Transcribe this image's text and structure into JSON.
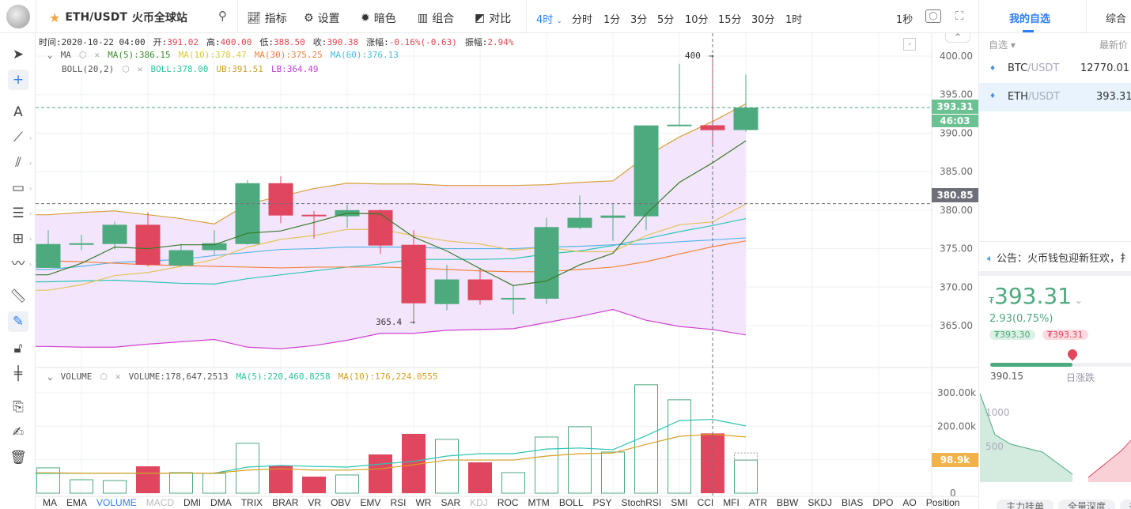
{
  "header": {
    "symbol": "ETH/USDT",
    "exchange": "火币全球站",
    "tools": [
      "指标",
      "设置",
      "暗色",
      "组合",
      "对比"
    ],
    "timeframes": [
      "4时",
      "分时",
      "1分",
      "3分",
      "5分",
      "10分",
      "15分",
      "30分",
      "1时"
    ],
    "active_timeframe": "4时",
    "refresh": "1秒"
  },
  "info": {
    "time_label": "时间:",
    "time": "2020-10-22 04:00",
    "open_label": "开:",
    "open": "391.02",
    "high_label": "高:",
    "high": "400.00",
    "low_label": "低:",
    "low": "388.50",
    "close_label": "收:",
    "close": "390.38",
    "chg_label": "涨幅:",
    "chg": "-0.16%(-0.63)",
    "amp_label": "振幅:",
    "amp": "2.94%"
  },
  "ma_legend": {
    "name": "MA",
    "ma5": "MA(5):386.15",
    "ma10": "MA(10):378.47",
    "ma30": "MA(30):375.25",
    "ma60": "MA(60):376.13"
  },
  "boll_legend": {
    "name": "BOLL(20,2)",
    "boll": "BOLL:378.00",
    "ub": "UB:391.51",
    "lb": "LB:364.49"
  },
  "vol_legend": {
    "name": "VOLUME",
    "vol": "VOLUME:178,647.2513",
    "ma5": "MA(5):220,460.8258",
    "ma10": "MA(10):176,224.0555"
  },
  "annotations": {
    "high": "400",
    "low": "365.4"
  },
  "price_tags": {
    "last": "393.31",
    "countdown": "46:03",
    "crosshair": "380.85",
    "volume": "98.9k"
  },
  "colors": {
    "up": "#4daa7e",
    "down": "#e0475f",
    "ma5": "#3a7a2a",
    "ma10": "#e3c35a",
    "ma30": "#f2843c",
    "ma60": "#5ab4e6",
    "boll": "#2ec4b6",
    "ub": "#d8a03a",
    "lb": "#d040d0",
    "vol_ma5": "#2ec4b6",
    "vol_ma10": "#d8a020",
    "accent": "#2f7cf6"
  },
  "indicator_tabs": [
    "MA",
    "EMA",
    "VOLUME",
    "MACD",
    "DMI",
    "DMA",
    "TRIX",
    "BRAR",
    "VR",
    "OBV",
    "EMV",
    "RSI",
    "WR",
    "SAR",
    "KDJ",
    "ROC",
    "MTM",
    "BOLL",
    "PSY",
    "StochRSI",
    "SMI",
    "CCI",
    "MFI",
    "ATR",
    "BBW",
    "SKDJ",
    "BIAS",
    "DPO",
    "AO",
    "Position"
  ],
  "active_indicator_tabs": [
    "MA",
    "VOLUME"
  ],
  "disabled_indicator_tabs": [
    "MACD",
    "KDJ"
  ],
  "chart_data": {
    "type": "candlestick",
    "price_ticks": [
      "400.00",
      "395.00",
      "390.00",
      "385.00",
      "380.00",
      "375.00",
      "370.00",
      "365.00"
    ],
    "ylim": [
      365,
      400
    ],
    "candles": [
      [
        372.5,
        377.4,
        372.5,
        375.6
      ],
      [
        375.5,
        376.8,
        374.8,
        375.7
      ],
      [
        375.6,
        378.5,
        374.9,
        378.1
      ],
      [
        378.1,
        379.7,
        372.7,
        372.9
      ],
      [
        372.8,
        375.6,
        372.7,
        374.8
      ],
      [
        374.8,
        377.4,
        374.2,
        375.7
      ],
      [
        375.6,
        383.9,
        375.5,
        383.5
      ],
      [
        383.5,
        384.4,
        378.3,
        379.3
      ],
      [
        379.4,
        379.9,
        376.3,
        379.2
      ],
      [
        379.2,
        380.7,
        377.7,
        380.0
      ],
      [
        380.0,
        380.1,
        374.3,
        375.4
      ],
      [
        375.5,
        377.4,
        365.4,
        367.9
      ],
      [
        367.8,
        372.9,
        367.0,
        371.0
      ],
      [
        371.0,
        372.5,
        367.7,
        368.3
      ],
      [
        368.4,
        370.2,
        366.5,
        368.6
      ],
      [
        368.5,
        379.0,
        367.8,
        377.8
      ],
      [
        377.7,
        381.9,
        377.5,
        379.0
      ],
      [
        379.0,
        380.8,
        376.0,
        379.3
      ],
      [
        379.2,
        391.0,
        377.4,
        391.0
      ],
      [
        391.0,
        399.0,
        390.9,
        391.1
      ],
      [
        391.02,
        400.0,
        388.5,
        390.38
      ],
      [
        390.4,
        397.6,
        390.2,
        393.31
      ]
    ],
    "ma5": [
      371.6,
      373.1,
      375.2,
      375.0,
      375.5,
      375.5,
      377.0,
      377.3,
      378.4,
      379.6,
      379.5,
      376.5,
      374.7,
      372.4,
      370.2,
      370.8,
      372.9,
      374.4,
      379.5,
      383.6,
      386.15,
      389.0
    ],
    "ma10": [
      369.6,
      370.3,
      371.5,
      371.9,
      372.7,
      373.6,
      375.2,
      376.2,
      376.7,
      377.5,
      377.5,
      376.7,
      376.0,
      375.6,
      374.8,
      375.2,
      374.6,
      374.6,
      376.7,
      378.1,
      378.47,
      380.8
    ],
    "ma30": [
      373.4,
      373.3,
      373.1,
      372.9,
      372.8,
      372.7,
      372.6,
      372.5,
      372.6,
      372.6,
      372.6,
      372.5,
      372.3,
      372.1,
      372.0,
      372.0,
      372.3,
      372.6,
      373.3,
      374.3,
      375.25,
      376.0
    ],
    "ma60": [
      372.3,
      372.7,
      373.2,
      373.4,
      373.6,
      374.1,
      374.5,
      374.9,
      375.0,
      375.2,
      375.2,
      375.2,
      375.0,
      375.0,
      375.0,
      375.2,
      375.3,
      375.5,
      375.6,
      375.9,
      376.13,
      376.4
    ],
    "boll": [
      370.7,
      370.8,
      370.9,
      370.7,
      370.5,
      370.4,
      371.1,
      371.6,
      372.1,
      372.6,
      373.0,
      373.6,
      373.6,
      373.6,
      373.7,
      374.3,
      374.7,
      375.4,
      376.3,
      377.2,
      378.0,
      378.9
    ],
    "ub": [
      379.4,
      379.7,
      379.9,
      379.4,
      378.9,
      378.2,
      380.8,
      381.8,
      382.8,
      383.5,
      383.4,
      383.4,
      383.2,
      383.2,
      383.2,
      383.3,
      383.6,
      383.8,
      387.0,
      389.5,
      391.51,
      393.8
    ],
    "lb": [
      362.3,
      362.2,
      362.2,
      362.6,
      362.9,
      363.2,
      362.2,
      362.0,
      362.4,
      363.1,
      364.0,
      364.0,
      364.4,
      364.5,
      364.6,
      365.4,
      366.2,
      367.1,
      365.7,
      364.9,
      364.49,
      363.8
    ],
    "volume_ticks": [
      "300.00k",
      "200.00k",
      "0"
    ],
    "volume_k": [
      75.7,
      40.2,
      37.8,
      80.4,
      61.5,
      59.1,
      148.9,
      82.7,
      49.6,
      54.4,
      115.8,
      177.3,
      160.8,
      92.2,
      61.5,
      167.8,
      198.6,
      122.9,
      323.9,
      279.0,
      178.6,
      98.9
    ],
    "volume_ma5_k": [
      59,
      60,
      60,
      60,
      60,
      60,
      78,
      83,
      80,
      78,
      87,
      95,
      111,
      118,
      118,
      132,
      135,
      130,
      172,
      217,
      220.5,
      201
    ],
    "volume_ma10_k": [
      61,
      60,
      60,
      60,
      60,
      60,
      69,
      73,
      69,
      69,
      73,
      85,
      99,
      99,
      99,
      111,
      118,
      120,
      146,
      170,
      176.2,
      168
    ]
  },
  "right": {
    "tabs": [
      "我的自选",
      "综合"
    ],
    "list_header": {
      "col1": "自选 ▾",
      "col2": "最新价"
    },
    "rows": [
      {
        "base": "BTC",
        "quote": "/USDT",
        "price": "12770.01"
      },
      {
        "base": "ETH",
        "quote": "/USDT",
        "price": "393.31"
      }
    ],
    "notice": "公告：火币钱包迎新狂欢，扌",
    "price": "393.31",
    "currency": "₮",
    "change": "2.93(0.75%)",
    "bid": "₮393.30",
    "ask": "₮393.31",
    "range_low": "390.15",
    "range_label": "日涨跌",
    "range_fraction": 0.58,
    "depth_ticks": [
      "1000",
      "500"
    ],
    "bottom_tabs": [
      "主力挂单",
      "全量深度",
      "委"
    ]
  }
}
